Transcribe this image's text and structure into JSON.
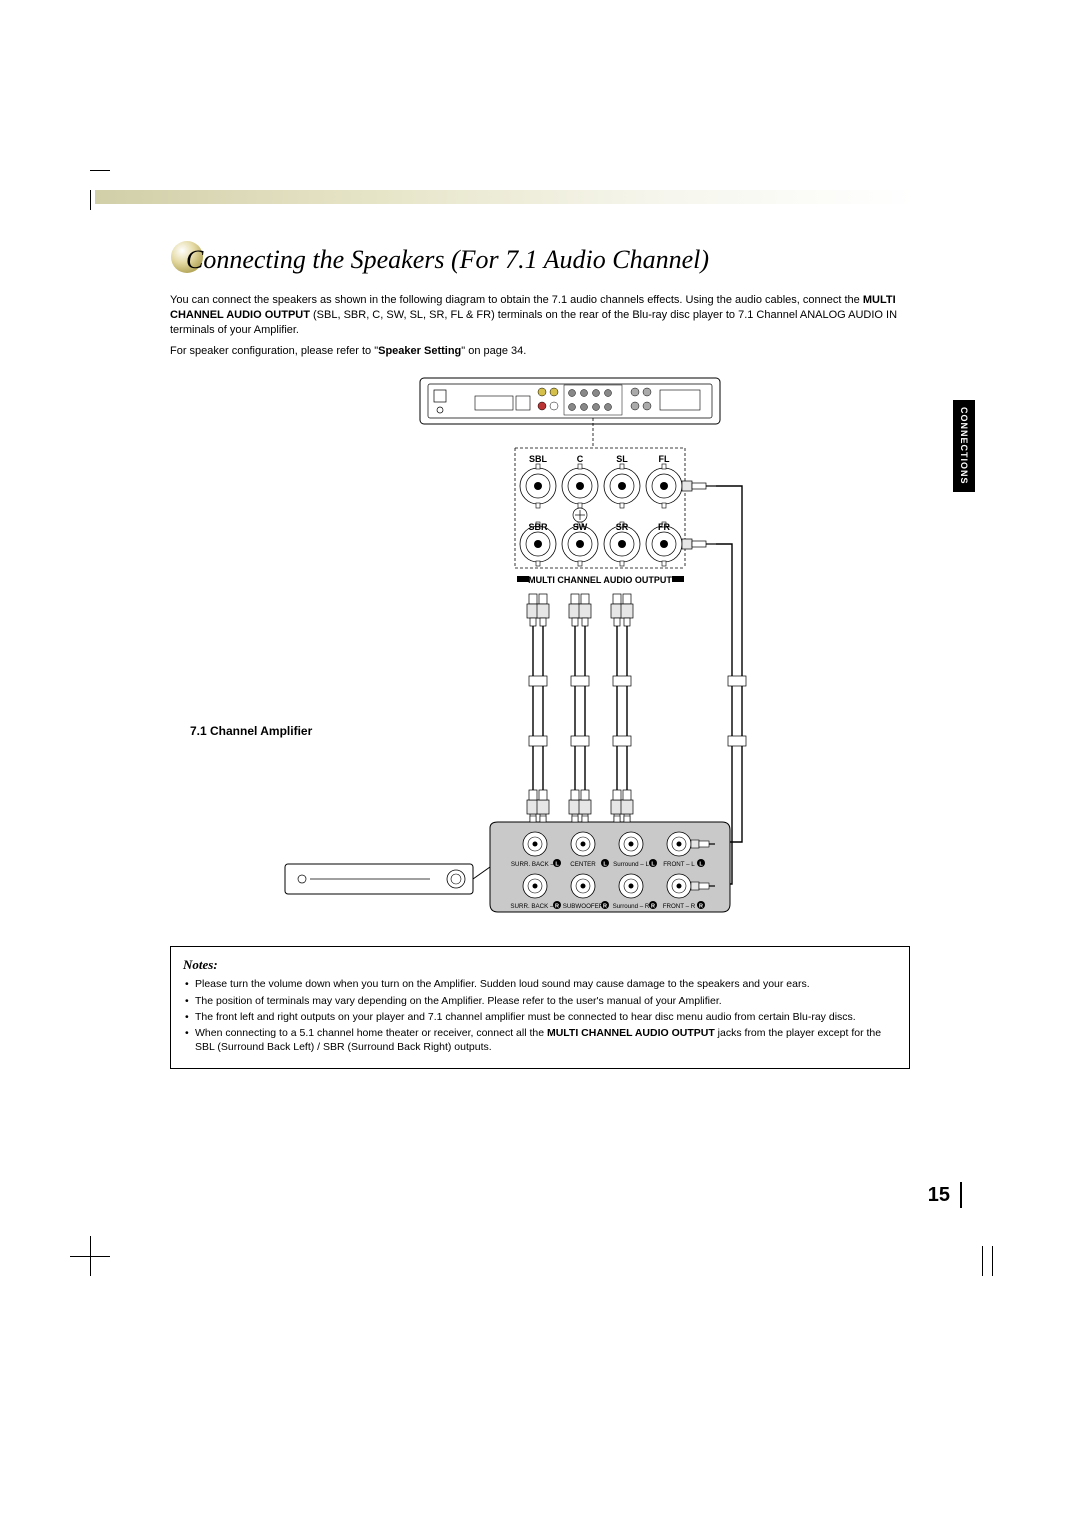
{
  "page": {
    "title": "Connecting the Speakers (For 7.1 Audio Channel)",
    "intro_part1": "You can connect the speakers as shown in the following diagram to obtain the 7.1 audio channels effects. Using the audio cables, connect the ",
    "intro_bold1": "MULTI CHANNEL AUDIO OUTPUT",
    "intro_part2": " (SBL, SBR, C, SW, SL, SR, FL & FR) terminals on the rear of the Blu-ray disc player to 7.1 Channel ANALOG AUDIO IN terminals of your Amplifier.",
    "intro2_part1": "For speaker configuration, please refer to \"",
    "intro2_bold": "Speaker Setting",
    "intro2_part2": "\" on page 34.",
    "amp_label": "7.1 Channel Amplifier",
    "side_tab": "CONNECTIONS",
    "page_number": "15"
  },
  "diagram": {
    "top_labels": [
      "SBL",
      "C",
      "SL",
      "FL"
    ],
    "bottom_labels": [
      "SBR",
      "SW",
      "SR",
      "FR"
    ],
    "section_label": "MULTI CHANNEL AUDIO OUTPUT",
    "amp_terminals_top": [
      "SURR. BACK – L",
      "CENTER",
      "Surround – L",
      "FRONT – L"
    ],
    "amp_terminals_bottom": [
      "SURR. BACK – R",
      "SUBWOOFER",
      "Surround – R",
      "FRONT – R"
    ],
    "colors": {
      "line": "#000000",
      "gray_fill": "#c9c9c9",
      "light_fill": "#e6e6e6",
      "bg": "#ffffff"
    }
  },
  "notes": {
    "title": "Notes:",
    "items": [
      {
        "text": "Please turn the volume down when you turn on the Amplifier. Sudden loud sound may cause damage to the speakers and your ears."
      },
      {
        "text": "The position of terminals may vary depending on the Amplifier. Please refer to the user's manual of your Amplifier."
      },
      {
        "text": "The front left and right outputs on your player and 7.1 channel amplifier must be connected to hear disc menu audio from certain Blu-ray discs."
      },
      {
        "text_pre": "When connecting to a 5.1 channel home theater or receiver, connect all the ",
        "bold": "MULTI CHANNEL AUDIO OUTPUT",
        "text_post": " jacks from the player except for the SBL (Surround Back Left) / SBR (Surround Back Right) outputs."
      }
    ]
  }
}
